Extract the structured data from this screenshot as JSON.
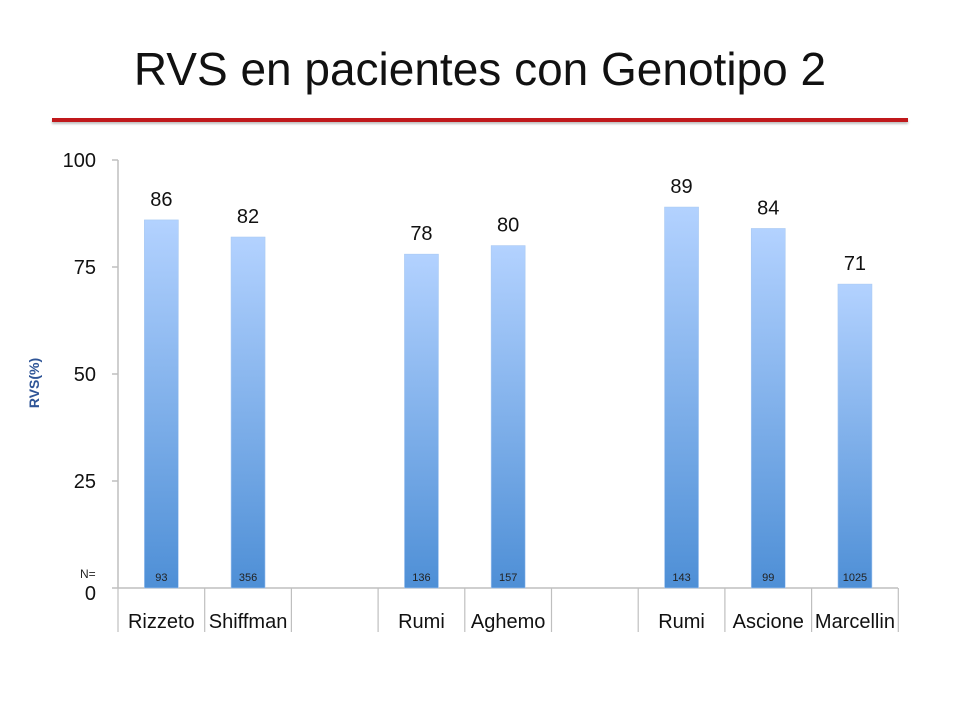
{
  "title": "RVS en pacientes con Genotipo 2",
  "colors": {
    "accent_rule": "#c0181b",
    "bar_top": "#b3d2ff",
    "bar_bottom": "#4e8fd6",
    "axis_title": "#2f5597"
  },
  "chart_data": {
    "type": "bar",
    "title": "",
    "ylabel": "RVS(%)",
    "xlabel": "",
    "ylim": [
      0,
      100
    ],
    "yticks": [
      0,
      25,
      50,
      75,
      100
    ],
    "grid": false,
    "legend": "none",
    "groups": [
      {
        "categories": [
          "Rizzeto",
          "Shiffman"
        ],
        "values": [
          86,
          82
        ],
        "n": [
          "93",
          "356"
        ]
      },
      {
        "categories": [
          "Rumi",
          "Aghemo"
        ],
        "values": [
          78,
          80
        ],
        "n": [
          "136",
          "157"
        ]
      },
      {
        "categories": [
          "Rumi",
          "Ascione",
          "Marcellin"
        ],
        "values": [
          89,
          84,
          71
        ],
        "n": [
          "143",
          "99",
          "1025"
        ]
      }
    ],
    "n_prefix": "N="
  }
}
